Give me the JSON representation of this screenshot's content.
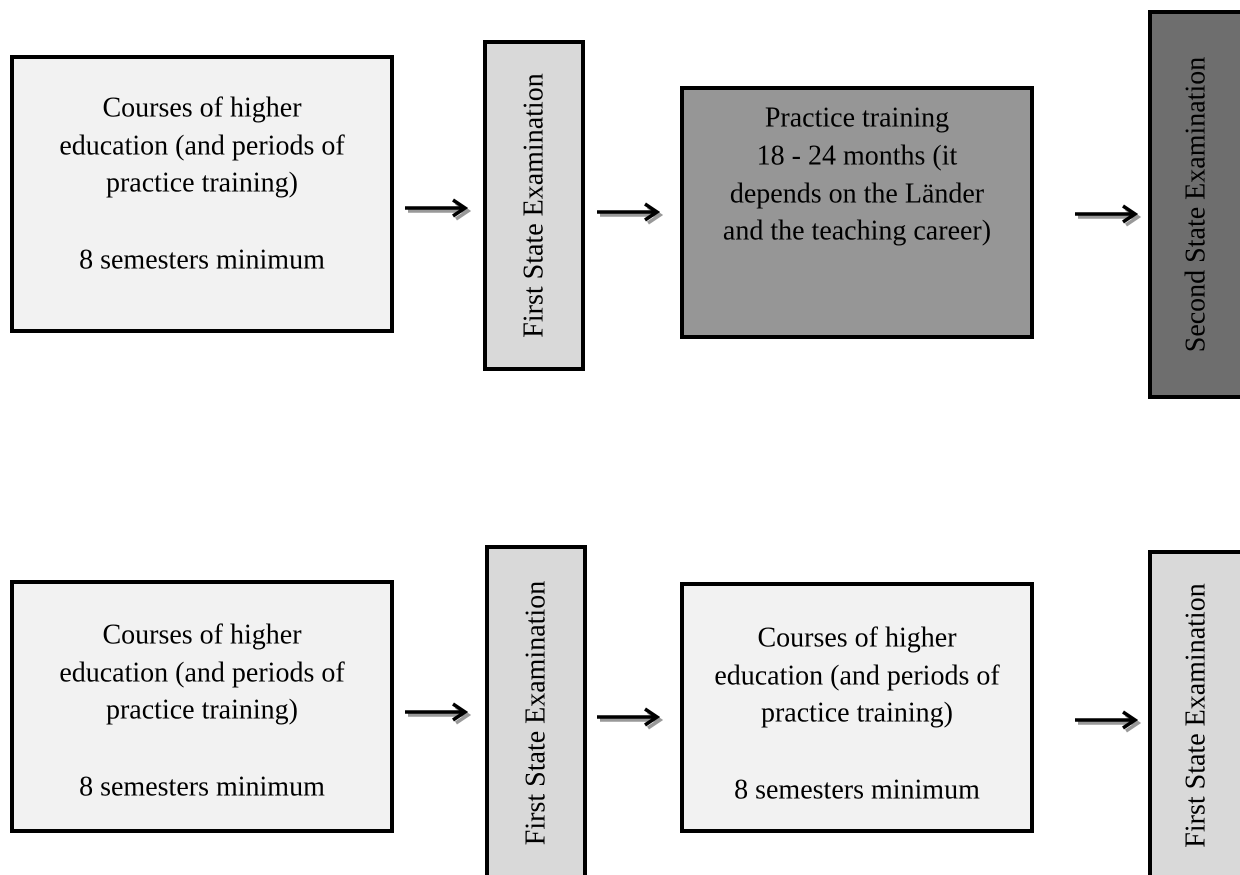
{
  "rows": [
    {
      "boxes": [
        {
          "lines": [
            "Courses of higher",
            "education (and periods of",
            "practice training)",
            "8 semesters minimum"
          ]
        },
        {
          "label": "First State Examination"
        },
        {
          "lines": [
            "Practice training",
            "18 - 24 months (it",
            "depends on the Länder",
            "and the teaching career)"
          ]
        },
        {
          "label": "Second State Examination"
        }
      ]
    },
    {
      "boxes": [
        {
          "lines": [
            "Courses of higher",
            "education (and periods of",
            "practice training)",
            "8 semesters minimum"
          ]
        },
        {
          "label": "First State Examination"
        },
        {
          "lines": [
            "Courses of higher",
            "education (and periods of",
            "practice training)",
            "8 semesters minimum"
          ]
        },
        {
          "label": "First State Examination"
        }
      ]
    }
  ]
}
